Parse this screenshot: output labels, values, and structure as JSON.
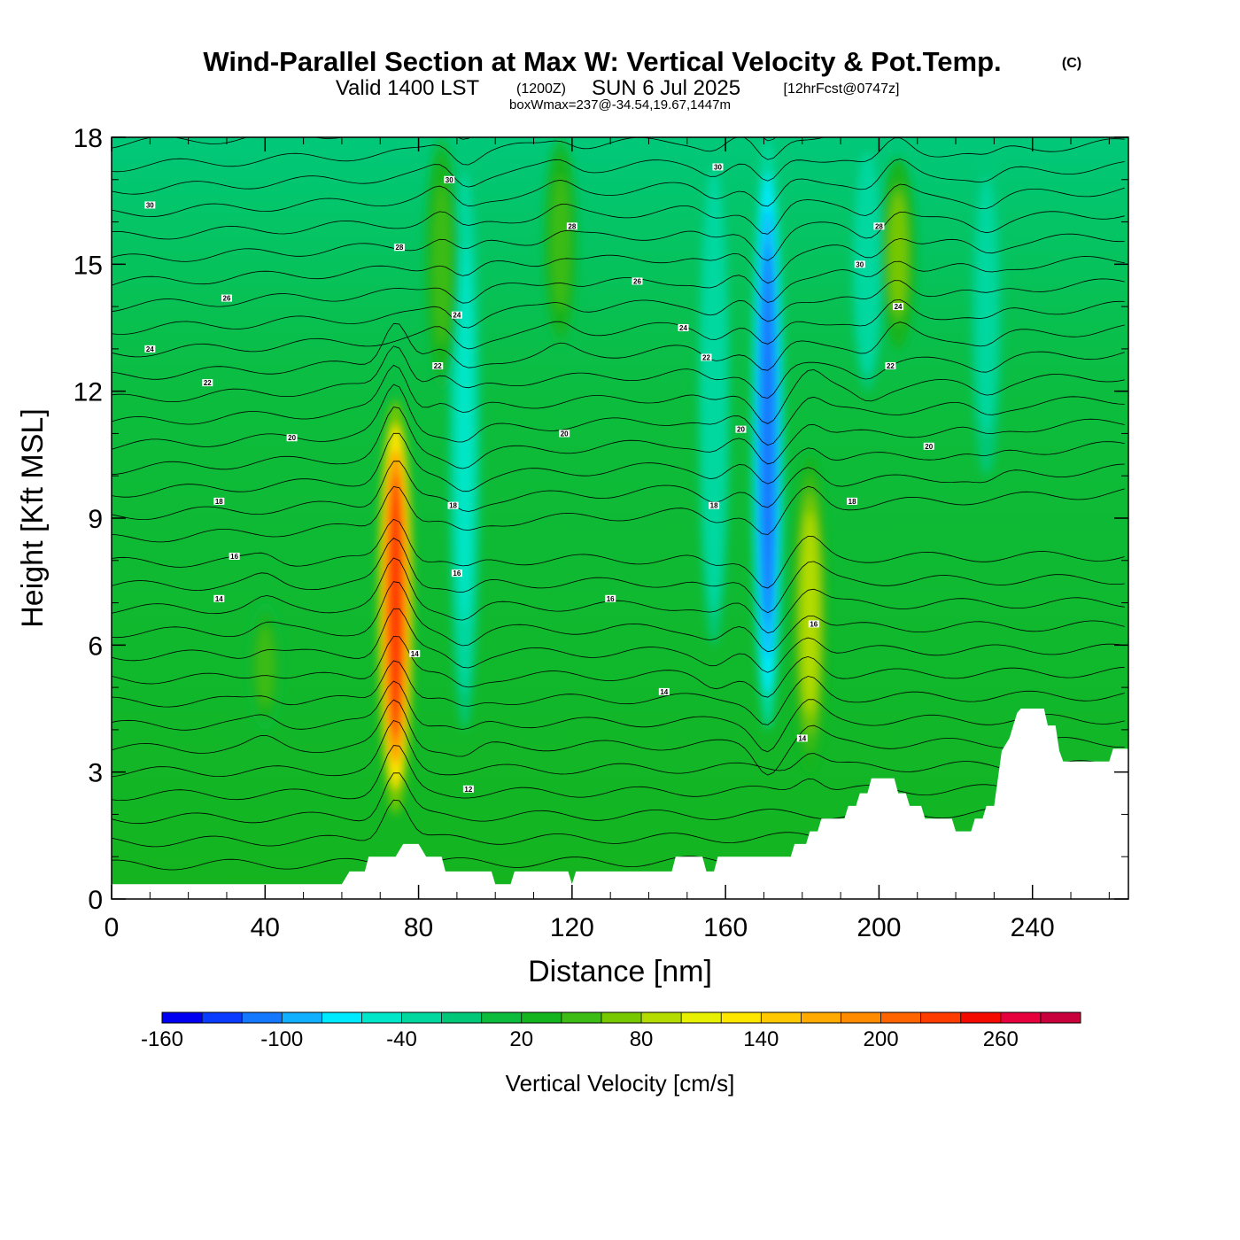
{
  "chart_data": {
    "type": "heatmap",
    "title": "Wind-Parallel Section at Max W: Vertical Velocity & Pot.Temp.",
    "title_mark": "(C)",
    "subtitle": {
      "valid": "Valid 1400 LST",
      "zulu": "(1200Z)",
      "date": "SUN 6 Jul 2025",
      "fcst": "[12hrFcst@0747z]"
    },
    "annotation": "boxWmax=237@-34.54,19.67,1447m",
    "xlabel": "Distance [nm]",
    "ylabel": "Height [Kft MSL]",
    "xlim": [
      0,
      265
    ],
    "ylim": [
      0,
      18
    ],
    "x_ticks": [
      0,
      40,
      80,
      120,
      160,
      200,
      240
    ],
    "y_ticks": [
      0,
      3,
      6,
      9,
      12,
      15,
      18
    ],
    "colorbar": {
      "label": "Vertical Velocity [cm/s]",
      "min": -160,
      "max": 300,
      "step": 20,
      "tick_labels": [
        "-160",
        "-100",
        "-40",
        "20",
        "80",
        "140",
        "200",
        "260"
      ],
      "colors": [
        "#0000f0",
        "#0a3cff",
        "#1478ff",
        "#10b0ff",
        "#00eaff",
        "#00e6c8",
        "#00d8a0",
        "#00c878",
        "#0cbc3c",
        "#14b41e",
        "#3cbc14",
        "#78c800",
        "#b4dc00",
        "#e6f000",
        "#ffe600",
        "#ffc800",
        "#ffaa00",
        "#ff8c00",
        "#ff6400",
        "#ff3c00",
        "#f50a00",
        "#e6003c",
        "#c8003c"
      ]
    },
    "updraft_bands": [
      {
        "x": 74,
        "z_bottom": 2.0,
        "z_top": 11.8,
        "w_max": 237
      },
      {
        "x": 182,
        "z_bottom": 3.0,
        "z_top": 10.5,
        "w_max": 90
      },
      {
        "x": 205,
        "z_bottom": 13.0,
        "z_top": 17.5,
        "w_max": 70
      },
      {
        "x": 86,
        "z_bottom": 12.0,
        "z_top": 18.0,
        "w_max": 45
      },
      {
        "x": 117,
        "z_bottom": 13.0,
        "z_top": 18.0,
        "w_max": 40
      },
      {
        "x": 40,
        "z_bottom": 4.0,
        "z_top": 7.0,
        "w_max": 40
      }
    ],
    "downdraft_bands": [
      {
        "x": 171,
        "z_bottom": 4.0,
        "z_top": 18.0,
        "w_min": -110
      },
      {
        "x": 92,
        "z_bottom": 4.0,
        "z_top": 18.0,
        "w_min": -45
      },
      {
        "x": 197,
        "z_bottom": 12.0,
        "z_top": 18.0,
        "w_min": -40
      },
      {
        "x": 157,
        "z_bottom": 6.0,
        "z_top": 18.0,
        "w_min": -40
      },
      {
        "x": 228,
        "z_bottom": 10.0,
        "z_top": 18.0,
        "w_min": -35
      }
    ],
    "theta_contours": {
      "units": "C",
      "labels": [
        {
          "x": 10,
          "z": 16.4,
          "text": "30"
        },
        {
          "x": 88,
          "z": 17.0,
          "text": "30"
        },
        {
          "x": 158,
          "z": 17.3,
          "text": "30"
        },
        {
          "x": 30,
          "z": 14.2,
          "text": "26"
        },
        {
          "x": 75,
          "z": 15.4,
          "text": "28"
        },
        {
          "x": 120,
          "z": 15.9,
          "text": "28"
        },
        {
          "x": 200,
          "z": 15.9,
          "text": "28"
        },
        {
          "x": 10,
          "z": 13.0,
          "text": "24"
        },
        {
          "x": 90,
          "z": 13.8,
          "text": "24"
        },
        {
          "x": 137,
          "z": 14.6,
          "text": "26"
        },
        {
          "x": 195,
          "z": 15.0,
          "text": "30"
        },
        {
          "x": 25,
          "z": 12.2,
          "text": "22"
        },
        {
          "x": 85,
          "z": 12.6,
          "text": "22"
        },
        {
          "x": 149,
          "z": 13.5,
          "text": "24"
        },
        {
          "x": 155,
          "z": 12.8,
          "text": "22"
        },
        {
          "x": 203,
          "z": 12.6,
          "text": "22"
        },
        {
          "x": 205,
          "z": 14.0,
          "text": "24"
        },
        {
          "x": 47,
          "z": 10.9,
          "text": "20"
        },
        {
          "x": 118,
          "z": 11.0,
          "text": "20"
        },
        {
          "x": 164,
          "z": 11.1,
          "text": "20"
        },
        {
          "x": 213,
          "z": 10.7,
          "text": "20"
        },
        {
          "x": 28,
          "z": 9.4,
          "text": "18"
        },
        {
          "x": 89,
          "z": 9.3,
          "text": "18"
        },
        {
          "x": 157,
          "z": 9.3,
          "text": "18"
        },
        {
          "x": 193,
          "z": 9.4,
          "text": "18"
        },
        {
          "x": 32,
          "z": 8.1,
          "text": "16"
        },
        {
          "x": 90,
          "z": 7.7,
          "text": "16"
        },
        {
          "x": 28,
          "z": 7.1,
          "text": "14"
        },
        {
          "x": 130,
          "z": 7.1,
          "text": "16"
        },
        {
          "x": 183,
          "z": 6.5,
          "text": "16"
        },
        {
          "x": 79,
          "z": 5.8,
          "text": "14"
        },
        {
          "x": 144,
          "z": 4.9,
          "text": "14"
        },
        {
          "x": 180,
          "z": 3.8,
          "text": "14"
        },
        {
          "x": 93,
          "z": 2.6,
          "text": "12"
        }
      ]
    },
    "terrain_kft": [
      [
        0,
        0.35
      ],
      [
        60,
        0.35
      ],
      [
        62,
        0.65
      ],
      [
        66,
        0.65
      ],
      [
        67,
        1.0
      ],
      [
        74,
        1.0
      ],
      [
        76,
        1.3
      ],
      [
        80,
        1.3
      ],
      [
        82,
        1.0
      ],
      [
        86,
        1.0
      ],
      [
        87,
        0.65
      ],
      [
        99,
        0.65
      ],
      [
        100,
        0.35
      ],
      [
        104,
        0.35
      ],
      [
        105,
        0.65
      ],
      [
        119,
        0.65
      ],
      [
        120,
        0.35
      ],
      [
        121,
        0.65
      ],
      [
        146,
        0.65
      ],
      [
        147,
        1.0
      ],
      [
        154,
        1.0
      ],
      [
        155,
        0.65
      ],
      [
        157,
        0.65
      ],
      [
        158,
        1.0
      ],
      [
        177,
        1.0
      ],
      [
        178,
        1.3
      ],
      [
        181,
        1.3
      ],
      [
        182,
        1.6
      ],
      [
        184,
        1.6
      ],
      [
        185,
        1.9
      ],
      [
        191,
        1.9
      ],
      [
        192,
        2.2
      ],
      [
        194,
        2.2
      ],
      [
        195,
        2.5
      ],
      [
        197,
        2.5
      ],
      [
        198,
        2.85
      ],
      [
        204,
        2.85
      ],
      [
        205,
        2.5
      ],
      [
        207,
        2.5
      ],
      [
        208,
        2.2
      ],
      [
        211,
        2.2
      ],
      [
        212,
        1.9
      ],
      [
        219,
        1.9
      ],
      [
        220,
        1.6
      ],
      [
        224,
        1.6
      ],
      [
        225,
        1.9
      ],
      [
        227,
        1.9
      ],
      [
        228,
        2.2
      ],
      [
        230,
        2.2
      ],
      [
        231,
        2.85
      ],
      [
        232,
        3.5
      ],
      [
        234,
        3.8
      ],
      [
        235,
        4.1
      ],
      [
        236,
        4.4
      ],
      [
        237,
        4.5
      ],
      [
        243,
        4.5
      ],
      [
        244,
        4.1
      ],
      [
        246,
        4.1
      ],
      [
        247,
        3.5
      ],
      [
        248,
        3.25
      ],
      [
        260,
        3.25
      ],
      [
        261,
        3.55
      ],
      [
        265,
        3.55
      ]
    ]
  }
}
